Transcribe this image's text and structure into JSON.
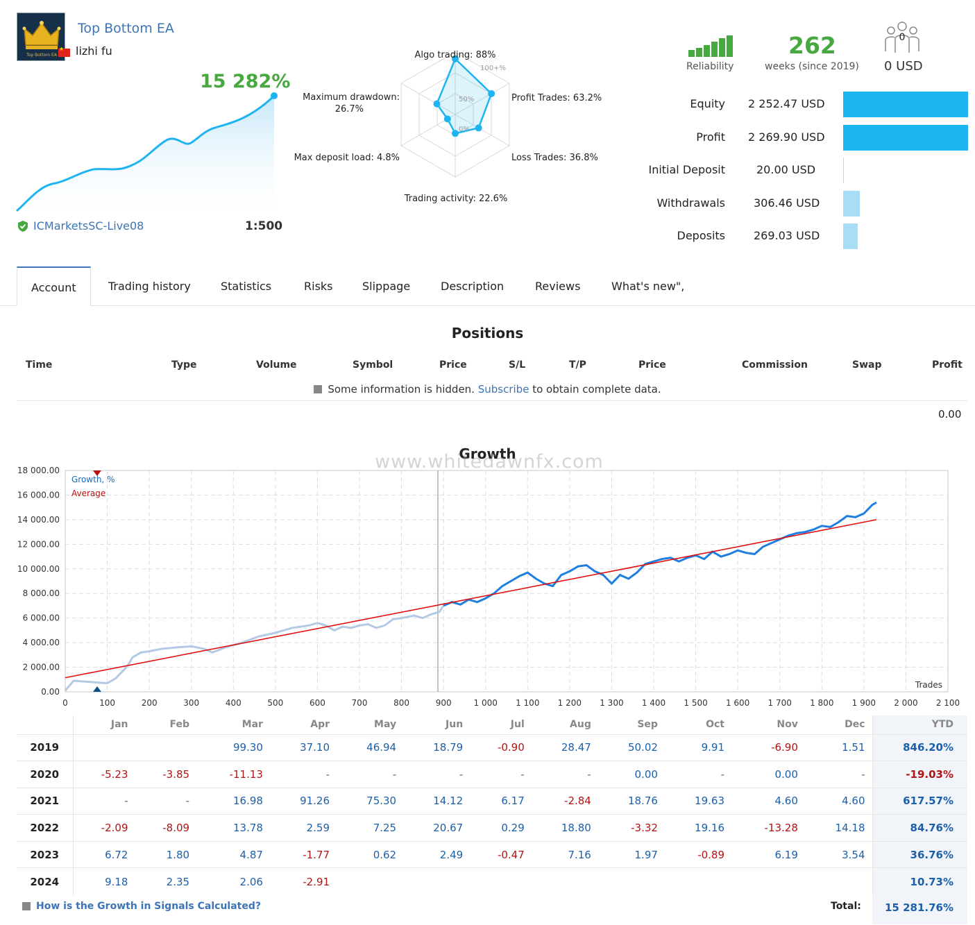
{
  "header": {
    "title": "Top Bottom EA",
    "author": "lizhi fu",
    "gain": "15 282%",
    "broker": "ICMarketsSC-Live08",
    "leverage": "1:500",
    "logo_text": "Top Bottom EA"
  },
  "radar": {
    "scale_100": "100+%",
    "scale_50": "50%",
    "scale_0": "0%",
    "labels": {
      "algo": "Algo trading: 88%",
      "profit_trades": "Profit Trades: 63.2%",
      "loss_trades": "Loss Trades: 36.8%",
      "activity": "Trading activity: 22.6%",
      "deposit_load": "Max deposit load: 4.8%",
      "drawdown_1": "Maximum drawdown:",
      "drawdown_2": "26.7%"
    },
    "values": {
      "algo": 88,
      "profit_trades": 63.2,
      "loss_trades": 36.8,
      "activity": 22.6,
      "deposit_load": 4.8,
      "drawdown": 26.7
    }
  },
  "summary": {
    "reliability_label": "Reliability",
    "weeks": "262",
    "weeks_label": "weeks (since 2019)",
    "subscribers": "0",
    "subscription_price": "0 USD"
  },
  "stats": [
    {
      "label": "Equity",
      "value": "2 252.47 USD",
      "fraction": 1.0,
      "color": "#1eb4f0"
    },
    {
      "label": "Profit",
      "value": "2 269.90 USD",
      "fraction": 1.0,
      "color": "#1eb4f0"
    },
    {
      "label": "Initial Deposit",
      "value": "20.00 USD",
      "fraction": 0.0,
      "color": "#a8def5"
    },
    {
      "label": "Withdrawals",
      "value": "306.46 USD",
      "fraction": 0.135,
      "color": "#a8def5"
    },
    {
      "label": "Deposits",
      "value": "269.03 USD",
      "fraction": 0.119,
      "color": "#a8def5"
    }
  ],
  "tabs": [
    "Account",
    "Trading history",
    "Statistics",
    "Risks",
    "Slippage",
    "Description",
    "Reviews",
    "What's new\","
  ],
  "positions": {
    "title": "Positions",
    "columns": [
      "Time",
      "Type",
      "Volume",
      "Symbol",
      "Price",
      "S/L",
      "T/P",
      "Price",
      "Commission",
      "Swap",
      "Profit"
    ],
    "hidden_text_1": "Some information is hidden.",
    "hidden_link": "Subscribe",
    "hidden_text_2": "to obtain complete data.",
    "total": "0.00"
  },
  "growth": {
    "title": "Growth",
    "watermark": "www.whitedawnfx.com",
    "legend_growth": "Growth, %",
    "legend_average": "Average",
    "x_axis_label": "Trades"
  },
  "chart_data": {
    "type": "line",
    "title": "Growth",
    "xlabel": "Trades",
    "ylabel": "",
    "xlim": [
      0,
      2100
    ],
    "ylim": [
      0,
      18000
    ],
    "x_ticks": [
      "0",
      "100",
      "200",
      "300",
      "400",
      "500",
      "600",
      "700",
      "800",
      "900",
      "1 000",
      "1 100",
      "1 200",
      "1 300",
      "1 400",
      "1 500",
      "1 600",
      "1 700",
      "1 800",
      "1 900",
      "2 000",
      "2 100"
    ],
    "y_ticks": [
      "0.00",
      "2 000.00",
      "4 000.00",
      "6 000.00",
      "8 000.00",
      "10 000.00",
      "12 000.00",
      "14 000.00",
      "16 000.00",
      "18 000.00"
    ],
    "series": [
      {
        "name": "Growth, %",
        "x": [
          0,
          20,
          60,
          100,
          120,
          140,
          150,
          160,
          180,
          200,
          230,
          260,
          300,
          330,
          350,
          380,
          420,
          460,
          500,
          540,
          580,
          600,
          620,
          640,
          660,
          680,
          700,
          720,
          740,
          760,
          780,
          800,
          830,
          850,
          870,
          890,
          900,
          920,
          940,
          960,
          980,
          1000,
          1020,
          1040,
          1060,
          1080,
          1100,
          1120,
          1140,
          1160,
          1180,
          1200,
          1220,
          1240,
          1260,
          1280,
          1300,
          1320,
          1340,
          1360,
          1380,
          1400,
          1420,
          1440,
          1460,
          1480,
          1500,
          1520,
          1540,
          1560,
          1580,
          1600,
          1620,
          1640,
          1660,
          1680,
          1700,
          1720,
          1740,
          1760,
          1780,
          1800,
          1820,
          1840,
          1860,
          1880,
          1900,
          1920,
          1930
        ],
        "y": [
          100,
          900,
          800,
          700,
          1100,
          1800,
          2200,
          2800,
          3200,
          3300,
          3500,
          3600,
          3700,
          3500,
          3200,
          3600,
          4000,
          4500,
          4800,
          5200,
          5400,
          5600,
          5400,
          5000,
          5300,
          5200,
          5400,
          5500,
          5200,
          5400,
          5900,
          6000,
          6200,
          6000,
          6300,
          6500,
          7000,
          7300,
          7100,
          7500,
          7300,
          7600,
          8000,
          8600,
          9000,
          9400,
          9700,
          9200,
          8800,
          8600,
          9500,
          9800,
          10200,
          10300,
          9800,
          9500,
          8800,
          9500,
          9200,
          9700,
          10400,
          10600,
          10800,
          10900,
          10600,
          10900,
          11100,
          10800,
          11400,
          11000,
          11200,
          11500,
          11300,
          11200,
          11800,
          12100,
          12400,
          12700,
          12900,
          13000,
          13200,
          13500,
          13400,
          13800,
          14300,
          14200,
          14500,
          15200,
          15400
        ]
      },
      {
        "name": "Average",
        "x": [
          0,
          1930
        ],
        "y": [
          1150,
          14000
        ]
      }
    ],
    "legend": "top-left",
    "grid": true
  },
  "monthly": {
    "months": [
      "Jan",
      "Feb",
      "Mar",
      "Apr",
      "May",
      "Jun",
      "Jul",
      "Aug",
      "Sep",
      "Oct",
      "Nov",
      "Dec"
    ],
    "ytd_label": "YTD",
    "rows": [
      {
        "year": "2019",
        "values": [
          "",
          "",
          "99.30",
          "37.10",
          "46.94",
          "18.79",
          "-0.90",
          "28.47",
          "50.02",
          "9.91",
          "-6.90",
          "1.51"
        ],
        "ytd": "846.20%"
      },
      {
        "year": "2020",
        "values": [
          "-5.23",
          "-3.85",
          "-11.13",
          "-",
          "-",
          "-",
          "-",
          "-",
          "0.00",
          "-",
          "0.00",
          "-"
        ],
        "ytd": "-19.03%"
      },
      {
        "year": "2021",
        "values": [
          "-",
          "-",
          "16.98",
          "91.26",
          "75.30",
          "14.12",
          "6.17",
          "-2.84",
          "18.76",
          "19.63",
          "4.60",
          "4.60"
        ],
        "ytd": "617.57%"
      },
      {
        "year": "2022",
        "values": [
          "-2.09",
          "-8.09",
          "13.78",
          "2.59",
          "7.25",
          "20.67",
          "0.29",
          "18.80",
          "-3.32",
          "19.16",
          "-13.28",
          "14.18"
        ],
        "ytd": "84.76%"
      },
      {
        "year": "2023",
        "values": [
          "6.72",
          "1.80",
          "4.87",
          "-1.77",
          "0.62",
          "2.49",
          "-0.47",
          "7.16",
          "1.97",
          "-0.89",
          "6.19",
          "3.54"
        ],
        "ytd": "36.76%"
      },
      {
        "year": "2024",
        "values": [
          "9.18",
          "2.35",
          "2.06",
          "-2.91",
          "",
          "",
          "",
          "",
          "",
          "",
          "",
          ""
        ],
        "ytd": "10.73%"
      }
    ],
    "how_link": "How is the Growth in Signals Calculated?",
    "total_label": "Total:",
    "total_value": "15 281.76%"
  }
}
